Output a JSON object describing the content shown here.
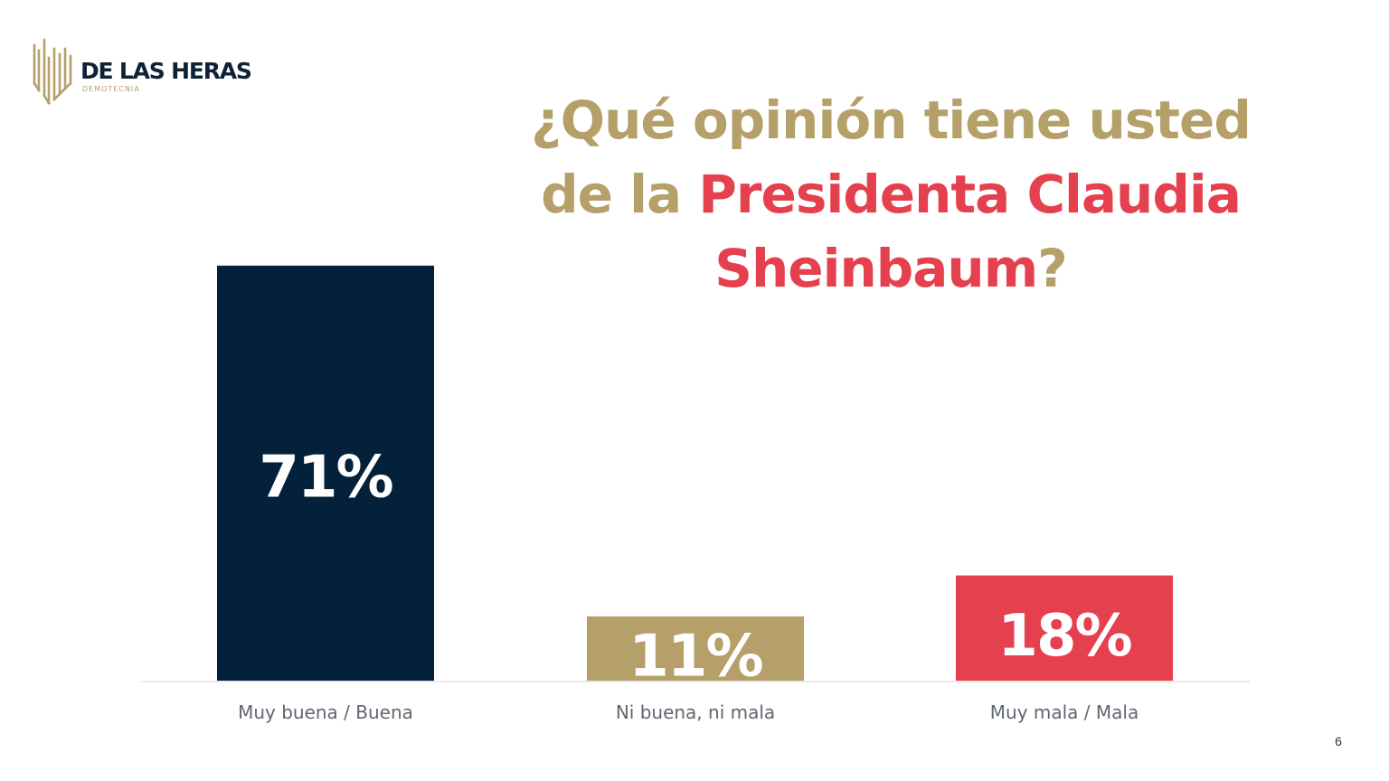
{
  "logo": {
    "name": "DE LAS HERAS",
    "subtitle": "DEMOTECNIA",
    "mark_icon": "gold-vertical-bars-logo-icon",
    "gold_color": "#b5a06a",
    "navy_color": "#0e2236"
  },
  "title": {
    "line1": "¿Qué opinión tiene usted",
    "line2_prefix": "de la ",
    "line2_highlight": "Presidenta Claudia",
    "line3_highlight": "Sheinbaum",
    "line3_suffix": "?",
    "color": "#b5a06a",
    "highlight_color": "#e5404e"
  },
  "chart_data": {
    "type": "bar",
    "categories": [
      "Muy buena / Buena",
      "Ni buena, ni mala",
      "Muy mala / Mala"
    ],
    "values": [
      71,
      11,
      18
    ],
    "data_labels": [
      "71%",
      "11%",
      "18%"
    ],
    "colors": [
      "#03213a",
      "#b5a06a",
      "#e5404e"
    ],
    "ylim": [
      0,
      75
    ],
    "grid": false,
    "legend": "none",
    "xlabel": "",
    "ylabel": ""
  },
  "page_number": "6"
}
